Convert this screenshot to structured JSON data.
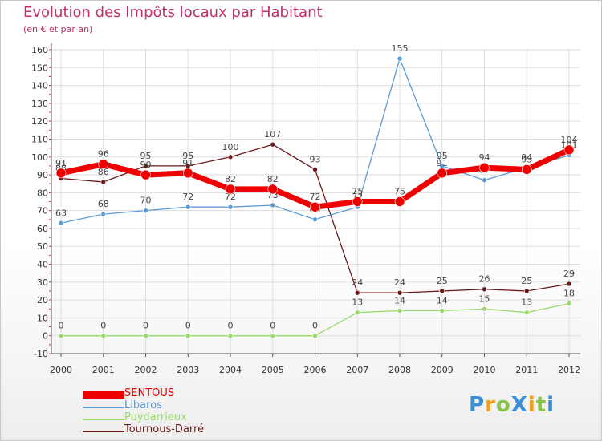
{
  "title": "Evolution des Impôts locaux par Habitant",
  "subtitle": "(en € et par an)",
  "chart_data": {
    "type": "line",
    "title": "Evolution des Impôts locaux par Habitant",
    "subtitle": "(en € et par an)",
    "xlabel": "",
    "ylabel": "",
    "x": [
      "2000",
      "2001",
      "2002",
      "2003",
      "2004",
      "2005",
      "2006",
      "2007",
      "2008",
      "2009",
      "2010",
      "2011",
      "2012"
    ],
    "ylim": [
      -10,
      160
    ],
    "yticks": [
      -10,
      0,
      10,
      20,
      30,
      40,
      50,
      60,
      70,
      80,
      90,
      100,
      110,
      120,
      130,
      140,
      150,
      160
    ],
    "grid": true,
    "legend_position": "bottom-left",
    "series": [
      {
        "name": "Tournous-Darré",
        "color": "#6b1a1a",
        "values": [
          88,
          86,
          95,
          95,
          100,
          107,
          93,
          24,
          24,
          25,
          26,
          25,
          29
        ]
      },
      {
        "name": "Libaros",
        "color": "#5b9bd5",
        "values": [
          63,
          68,
          70,
          72,
          72,
          73,
          65,
          72,
          155,
          95,
          87,
          94,
          101
        ]
      },
      {
        "name": "Puydarrieux",
        "color": "#9bd96b",
        "values": [
          0,
          0,
          0,
          0,
          0,
          0,
          0,
          13,
          14,
          14,
          15,
          13,
          18
        ]
      },
      {
        "name": "SENTOUS",
        "color": "#ee0000",
        "values": [
          91,
          96,
          90,
          91,
          82,
          82,
          72,
          75,
          75,
          91,
          94,
          93,
          104
        ]
      }
    ]
  },
  "legend": {
    "items": [
      {
        "label": "SENTOUS",
        "color": "#ee0000"
      },
      {
        "label": "Libaros",
        "color": "#5b9bd5"
      },
      {
        "label": "Puydarrieux",
        "color": "#9bd96b"
      },
      {
        "label": "Tournous-Darré",
        "color": "#6b1a1a"
      }
    ]
  },
  "logo": {
    "text": "ProXiti",
    "colors": [
      "#3a8fd9",
      "#f0a020",
      "#8bc34a",
      "#3a8fd9",
      "#f0a020",
      "#8bc34a",
      "#3a8fd9"
    ]
  }
}
